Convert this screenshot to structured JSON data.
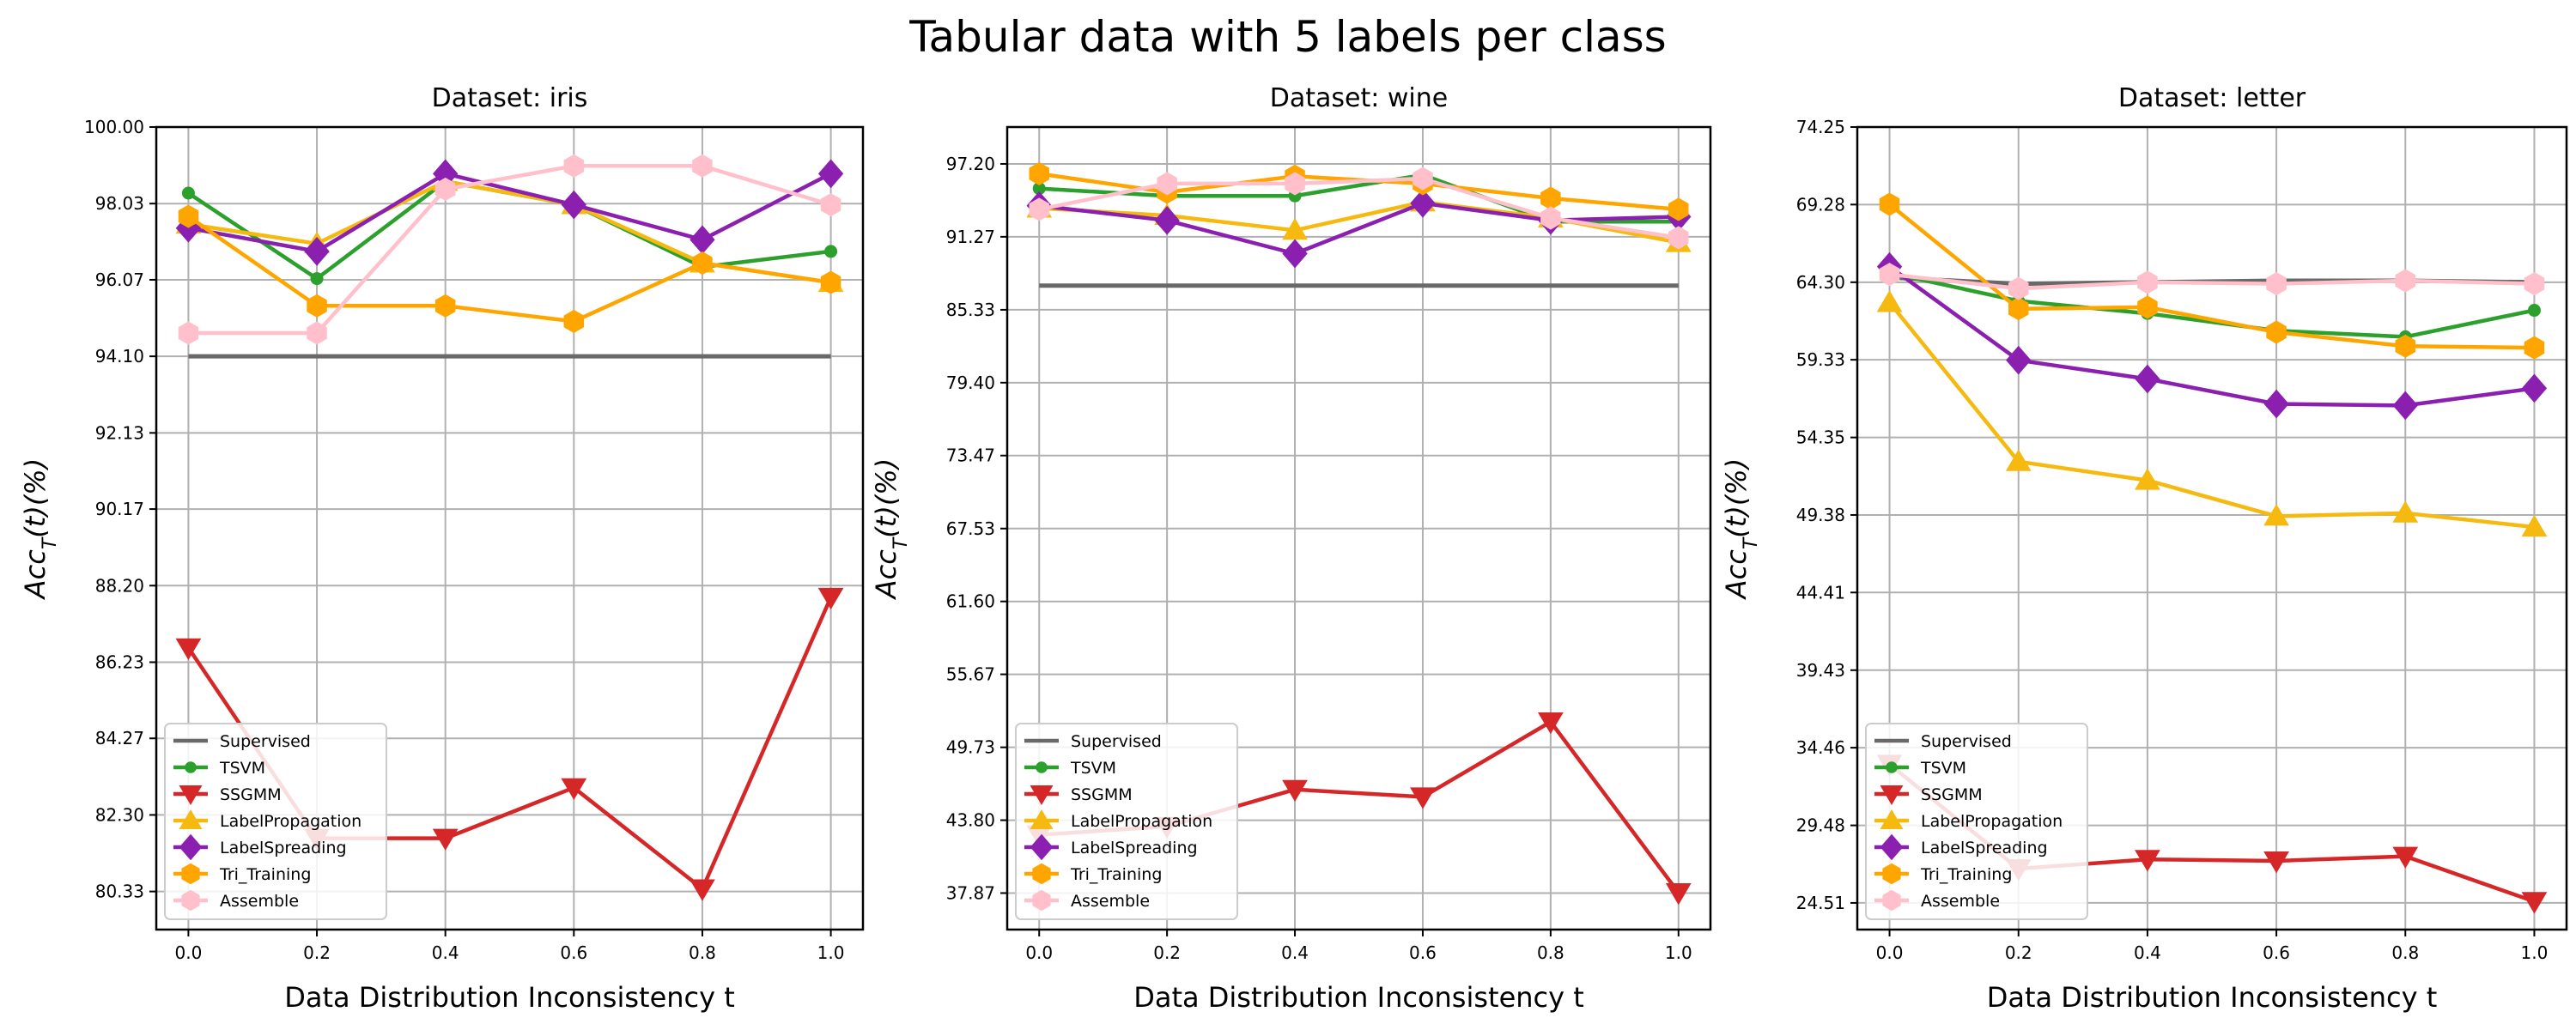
{
  "figure": {
    "title": "Tabular data with 5 labels per class"
  },
  "chart_data": [
    {
      "type": "line",
      "title": "Dataset: iris",
      "xlabel": "Data Distribution Inconsistency t",
      "ylabel": "Acc_T(t)(%)",
      "x": [
        0.0,
        0.2,
        0.4,
        0.6,
        0.8,
        1.0
      ],
      "xticks": [
        "0.0",
        "0.2",
        "0.4",
        "0.6",
        "0.8",
        "1.0"
      ],
      "xlim": [
        -0.05,
        1.05
      ],
      "yticks": [
        "80.33",
        "82.30",
        "84.27",
        "86.23",
        "88.20",
        "90.17",
        "92.13",
        "94.10",
        "96.07",
        "98.03",
        "100.00"
      ],
      "ylim": [
        79.35,
        100.0
      ],
      "grid": true,
      "legend_position": "lower-left",
      "series": [
        {
          "name": "Supervised",
          "values": [
            94.1,
            94.1,
            94.1,
            94.1,
            94.1,
            94.1
          ],
          "color": "#696969",
          "marker": "none"
        },
        {
          "name": "TSVM",
          "values": [
            98.3,
            96.1,
            98.6,
            98.0,
            96.4,
            96.8
          ],
          "color": "#2ca02c",
          "marker": "circle"
        },
        {
          "name": "SSGMM",
          "values": [
            86.6,
            81.7,
            81.7,
            83.0,
            80.4,
            87.9
          ],
          "color": "#d62728",
          "marker": "triangle-down"
        },
        {
          "name": "LabelPropagation",
          "values": [
            97.5,
            97.0,
            98.6,
            98.0,
            96.5,
            96.0
          ],
          "color": "#f5b90f",
          "marker": "triangle-up"
        },
        {
          "name": "LabelSpreading",
          "values": [
            97.4,
            96.8,
            98.8,
            98.0,
            97.1,
            98.8
          ],
          "color": "#8a1fb0",
          "marker": "diamond"
        },
        {
          "name": "Tri_Training",
          "values": [
            97.7,
            95.4,
            95.4,
            95.0,
            96.5,
            96.0
          ],
          "color": "#ffa500",
          "marker": "hexagon"
        },
        {
          "name": "Assemble",
          "values": [
            94.7,
            94.7,
            98.4,
            99.0,
            99.0,
            98.0
          ],
          "color": "#ffc0cb",
          "marker": "hexagon"
        }
      ]
    },
    {
      "type": "line",
      "title": "Dataset: wine",
      "xlabel": "Data Distribution Inconsistency t",
      "ylabel": "Acc_T(t)(%)",
      "x": [
        0.0,
        0.2,
        0.4,
        0.6,
        0.8,
        1.0
      ],
      "xticks": [
        "0.0",
        "0.2",
        "0.4",
        "0.6",
        "0.8",
        "1.0"
      ],
      "xlim": [
        -0.05,
        1.05
      ],
      "yticks": [
        "37.87",
        "43.80",
        "49.73",
        "55.67",
        "61.60",
        "67.53",
        "73.47",
        "79.40",
        "85.33",
        "91.27",
        "97.20"
      ],
      "ylim": [
        34.9,
        100.2
      ],
      "grid": true,
      "legend_position": "lower-left",
      "series": [
        {
          "name": "Supervised",
          "values": [
            87.3,
            87.3,
            87.3,
            87.3,
            87.3,
            87.3
          ],
          "color": "#696969",
          "marker": "none"
        },
        {
          "name": "TSVM",
          "values": [
            95.2,
            94.6,
            94.6,
            96.3,
            92.5,
            92.5
          ],
          "color": "#2ca02c",
          "marker": "circle"
        },
        {
          "name": "SSGMM",
          "values": [
            42.6,
            43.3,
            46.3,
            45.7,
            51.8,
            37.9
          ],
          "color": "#d62728",
          "marker": "triangle-down"
        },
        {
          "name": "LabelPropagation",
          "values": [
            93.6,
            93.0,
            91.8,
            94.1,
            92.8,
            90.8
          ],
          "color": "#f5b90f",
          "marker": "triangle-up"
        },
        {
          "name": "LabelSpreading",
          "values": [
            93.8,
            92.6,
            89.9,
            94.0,
            92.6,
            92.9
          ],
          "color": "#8a1fb0",
          "marker": "diamond"
        },
        {
          "name": "Tri_Training",
          "values": [
            96.4,
            94.9,
            96.2,
            95.6,
            94.4,
            93.5
          ],
          "color": "#ffa500",
          "marker": "hexagon"
        },
        {
          "name": "Assemble",
          "values": [
            93.5,
            95.6,
            95.6,
            96.0,
            92.8,
            91.2
          ],
          "color": "#ffc0cb",
          "marker": "hexagon"
        }
      ]
    },
    {
      "type": "line",
      "title": "Dataset: letter",
      "xlabel": "Data Distribution Inconsistency t",
      "ylabel": "Acc_T(t)(%)",
      "x": [
        0.0,
        0.2,
        0.4,
        0.6,
        0.8,
        1.0
      ],
      "xticks": [
        "0.0",
        "0.2",
        "0.4",
        "0.6",
        "0.8",
        "1.0"
      ],
      "xlim": [
        -0.05,
        1.05
      ],
      "yticks": [
        "24.51",
        "29.48",
        "34.46",
        "39.43",
        "44.41",
        "49.38",
        "54.35",
        "59.33",
        "64.30",
        "69.28",
        "74.25"
      ],
      "ylim": [
        22.8,
        74.25
      ],
      "grid": true,
      "legend_position": "lower-left",
      "series": [
        {
          "name": "Supervised",
          "values": [
            64.6,
            64.2,
            64.3,
            64.4,
            64.4,
            64.3
          ],
          "color": "#696969",
          "marker": "none"
        },
        {
          "name": "TSVM",
          "values": [
            64.9,
            63.1,
            62.3,
            61.2,
            60.8,
            62.5
          ],
          "color": "#2ca02c",
          "marker": "circle"
        },
        {
          "name": "SSGMM",
          "values": [
            33.4,
            26.7,
            27.3,
            27.2,
            27.5,
            24.6
          ],
          "color": "#d62728",
          "marker": "triangle-down"
        },
        {
          "name": "LabelPropagation",
          "values": [
            63.0,
            52.8,
            51.6,
            49.3,
            49.5,
            48.6
          ],
          "color": "#f5b90f",
          "marker": "triangle-up"
        },
        {
          "name": "LabelSpreading",
          "values": [
            65.3,
            59.3,
            58.1,
            56.5,
            56.4,
            57.5
          ],
          "color": "#8a1fb0",
          "marker": "diamond"
        },
        {
          "name": "Tri_Training",
          "values": [
            69.3,
            62.6,
            62.7,
            61.1,
            60.2,
            60.1
          ],
          "color": "#ffa500",
          "marker": "hexagon"
        },
        {
          "name": "Assemble",
          "values": [
            64.8,
            63.9,
            64.3,
            64.2,
            64.4,
            64.2
          ],
          "color": "#ffc0cb",
          "marker": "hexagon"
        }
      ]
    }
  ]
}
